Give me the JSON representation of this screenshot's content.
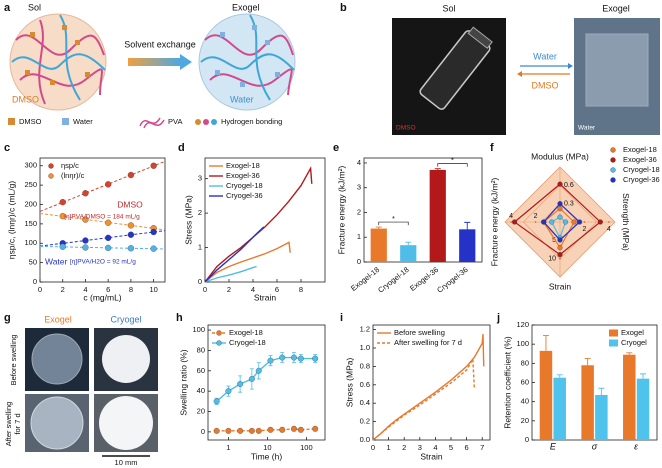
{
  "panel_a": {
    "label": "a",
    "left_title": "Sol",
    "right_title": "Exogel",
    "arrow_label": "Solvent exchange",
    "left_solvent": "DMSO",
    "right_solvent": "Water",
    "legend": [
      "DMSO",
      "Water",
      "PVA",
      "Hydrogen bonding"
    ]
  },
  "panel_b": {
    "label": "b",
    "left_title": "Sol",
    "right_title": "Exogel",
    "forward": "Water",
    "backward": "DMSO",
    "left_photo_label": "DMSO",
    "right_photo_label": "Water"
  },
  "panel_g": {
    "label": "g",
    "columns": [
      "Exogel",
      "Cryogel"
    ],
    "rows": [
      [
        "Before swelling"
      ],
      [
        "After swelling",
        "for 7 d"
      ]
    ],
    "scale_bar": "10 mm"
  },
  "chart_data": [
    {
      "type": "scatter",
      "label": "c",
      "xlabel": "c (mg/mL)",
      "ylabel": "ηsp/c, (lnηr)/c (mL/g)",
      "xlim": [
        0,
        11
      ],
      "xticks": [
        0,
        2,
        4,
        6,
        8,
        10
      ],
      "ylim": [
        0,
        320
      ],
      "yticks": [
        0,
        50,
        100,
        150,
        200,
        250,
        300
      ],
      "fit": true,
      "legend": "upper left",
      "legend_entries": [
        {
          "name": "ηsp/c",
          "color": "#d9412b"
        },
        {
          "name": "(lnηr)/c",
          "color": "#f0912e"
        }
      ],
      "series": [
        {
          "color": "#d9412b",
          "x": [
            2,
            4,
            6,
            8,
            10
          ],
          "values": [
            206,
            229,
            252,
            276,
            300
          ]
        },
        {
          "color": "#f0912e",
          "x": [
            2,
            4,
            6,
            8,
            10
          ],
          "values": [
            170,
            161,
            153,
            146,
            139
          ]
        },
        {
          "color": "#2734c8",
          "x": [
            2,
            4,
            6,
            8,
            10
          ],
          "values": [
            100,
            107,
            114,
            122,
            129
          ]
        },
        {
          "color": "#4fb3e8",
          "x": [
            2,
            4,
            6,
            8,
            10
          ],
          "values": [
            91,
            89,
            88,
            87,
            86
          ]
        }
      ],
      "annotations": [
        {
          "text": "DMSO",
          "color": "#c0282a"
        },
        {
          "text": "[η]PVA/DMSO = 184 mL/g",
          "color": "#c0282a"
        },
        {
          "text": "Water",
          "color": "#2734c8"
        },
        {
          "text": "[η]PVA/H2O = 92 mL/g",
          "color": "#2734c8"
        }
      ]
    },
    {
      "type": "line",
      "label": "d",
      "xlabel": "Strain",
      "ylabel": "Stress (MPa)",
      "xlim": [
        0,
        10
      ],
      "xticks": [
        0,
        2,
        4,
        6,
        8
      ],
      "ylim": [
        0,
        3.6
      ],
      "yticks": [
        0,
        1,
        2,
        3
      ],
      "legend": "upper left",
      "series": [
        {
          "name": "Exogel-18",
          "color": "#e8792a",
          "x": [
            0,
            1,
            2,
            3,
            4,
            5,
            6,
            7,
            7.1
          ],
          "values": [
            0,
            0.28,
            0.45,
            0.58,
            0.7,
            0.82,
            0.97,
            1.15,
            0.85
          ]
        },
        {
          "name": "Exogel-36",
          "color": "#b3191b",
          "x": [
            0,
            1,
            2,
            3,
            4,
            5,
            6,
            7,
            8,
            8.8,
            8.9
          ],
          "values": [
            0,
            0.45,
            0.75,
            1.0,
            1.3,
            1.6,
            1.95,
            2.35,
            2.8,
            3.3,
            2.85
          ]
        },
        {
          "name": "Cryogel-18",
          "color": "#4fbde8",
          "x": [
            0,
            1,
            2,
            3,
            4,
            4.3
          ],
          "values": [
            0,
            0.12,
            0.2,
            0.3,
            0.42,
            0.45
          ]
        },
        {
          "name": "Cryogel-36",
          "color": "#2432c8",
          "x": [
            0,
            1,
            2,
            3,
            4,
            4.9
          ],
          "values": [
            0,
            0.35,
            0.65,
            0.95,
            1.3,
            1.6
          ]
        }
      ]
    },
    {
      "type": "bar",
      "label": "e",
      "ylabel": "Fracture energy (kJ/m²)",
      "categories": [
        "Exogel-18",
        "Cryogel-18",
        "Exogel-36",
        "Cryogel-36"
      ],
      "values": [
        1.35,
        0.68,
        3.72,
        1.32
      ],
      "errors": [
        0.06,
        0.12,
        0.05,
        0.28
      ],
      "colors": [
        "#e8792a",
        "#4fbde8",
        "#b3191b",
        "#2432c8"
      ],
      "ylim": [
        0,
        4.2
      ],
      "yticks": [
        0,
        1,
        2,
        3,
        4
      ],
      "annotations": [
        "*",
        "*"
      ]
    },
    {
      "type": "radar",
      "label": "f",
      "legend": "upper right",
      "axes": [
        {
          "label": "Modulus (MPa)",
          "lim": [
            0,
            0.9
          ],
          "ticks": [
            0.3,
            0.6
          ]
        },
        {
          "label": "Strength (MPa)",
          "lim": [
            0,
            4.5
          ],
          "ticks": [
            2,
            4
          ]
        },
        {
          "label": "Strain",
          "lim": [
            0,
            15
          ],
          "ticks": [
            5,
            10
          ]
        },
        {
          "label": "Fracture energy (kJ/m²)",
          "lim": [
            0,
            4.5
          ],
          "ticks": [
            2,
            4
          ]
        }
      ],
      "series": [
        {
          "name": "Exogel-18",
          "color": "#e8792a",
          "values": [
            0.22,
            1.15,
            7,
            1.35
          ]
        },
        {
          "name": "Exogel-36",
          "color": "#b3191b",
          "values": [
            0.62,
            3.3,
            8.9,
            3.72
          ]
        },
        {
          "name": "Cryogel-18",
          "color": "#4fbde8",
          "values": [
            0.08,
            0.45,
            4.3,
            0.68
          ]
        },
        {
          "name": "Cryogel-36",
          "color": "#2432c8",
          "values": [
            0.3,
            1.6,
            4.9,
            1.32
          ]
        }
      ]
    },
    {
      "type": "line",
      "label": "h",
      "xlabel": "Time (h)",
      "ylabel": "Swelling ratio (%)",
      "xscale": "log",
      "xlim": [
        0.3,
        300
      ],
      "xticks": [
        1,
        10,
        100
      ],
      "ylim": [
        -8,
        105
      ],
      "yticks": [
        0,
        20,
        40,
        60,
        80,
        100
      ],
      "legend": "upper left",
      "x": [
        0.5,
        1,
        2,
        4,
        6,
        12,
        24,
        48,
        72,
        168
      ],
      "series": [
        {
          "name": "Exogel-18",
          "color": "#e8792a",
          "dash": true,
          "marker": "circle",
          "values": [
            1,
            1,
            1,
            1,
            1,
            2,
            2,
            3,
            2,
            3
          ],
          "errors": [
            1,
            1,
            1,
            1,
            1,
            2,
            2,
            2,
            2,
            2
          ]
        },
        {
          "name": "Cryogel-18",
          "color": "#4fbde8",
          "marker": "circle",
          "values": [
            30,
            40,
            47,
            52,
            60,
            70,
            73,
            73,
            72,
            72
          ],
          "errors": [
            3,
            5,
            8,
            10,
            8,
            5,
            5,
            5,
            4,
            4
          ]
        }
      ]
    },
    {
      "type": "line",
      "label": "i",
      "xlabel": "Strain",
      "ylabel": "Stress (MPa)",
      "xlim": [
        0,
        7.5
      ],
      "xticks": [
        0,
        1,
        2,
        3,
        4,
        5,
        6,
        7
      ],
      "ylim": [
        0,
        1.25
      ],
      "yticks": [
        {
          "value": 0,
          "label": "0.0"
        },
        0.2,
        0.4,
        0.6,
        0.8,
        {
          "value": 1,
          "label": "1.0"
        },
        1.2
      ],
      "legend": "upper left",
      "series": [
        {
          "name": "Before swelling",
          "color": "#e8792a",
          "x": [
            0,
            0.5,
            1,
            1.5,
            2,
            3,
            4,
            5,
            6,
            6.5,
            7,
            7.05,
            7.1
          ],
          "values": [
            0,
            0.07,
            0.15,
            0.22,
            0.28,
            0.4,
            0.52,
            0.65,
            0.8,
            0.9,
            1.05,
            1.15,
            0.8
          ]
        },
        {
          "name": "After swelling for 7 d",
          "color": "#e8792a",
          "dash": true,
          "x": [
            0,
            1,
            2,
            3,
            4,
            5,
            6,
            6.4,
            6.5
          ],
          "values": [
            0,
            0.14,
            0.27,
            0.38,
            0.5,
            0.62,
            0.76,
            0.88,
            0.55
          ]
        }
      ]
    },
    {
      "type": "bar",
      "label": "j",
      "ylabel": "Retention coefficient (%)",
      "legend": "upper right",
      "categories": [
        "E",
        "σ",
        "ε"
      ],
      "ylim": [
        0,
        120
      ],
      "yticks": [
        0,
        20,
        40,
        60,
        80,
        100,
        120
      ],
      "series": [
        {
          "name": "Exogel",
          "color": "#e8792a",
          "values": [
            93,
            78,
            89
          ],
          "errors": [
            16,
            7,
            2
          ]
        },
        {
          "name": "Cryogel",
          "color": "#4fc3ec",
          "values": [
            65,
            47,
            64
          ],
          "errors": [
            3,
            7,
            5
          ]
        }
      ]
    }
  ]
}
